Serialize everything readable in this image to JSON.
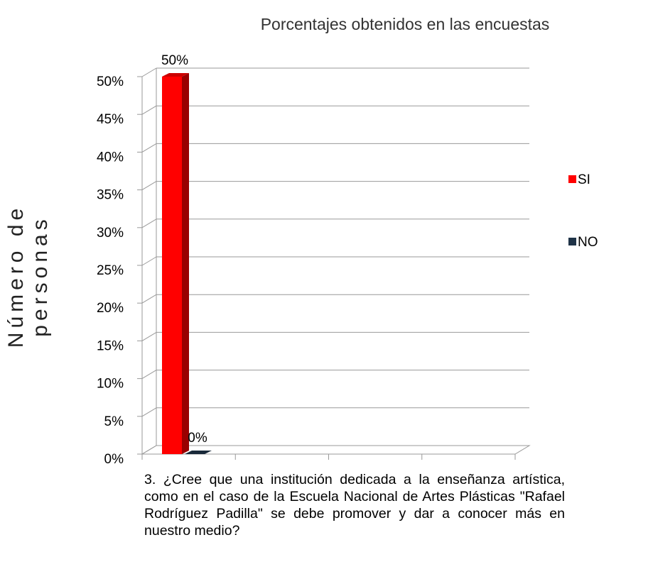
{
  "chart_data": {
    "type": "bar",
    "title": "Porcentajes obtenidos en las encuestas",
    "ylabel": "Número de personas",
    "categories": [
      "3. ¿Cree que una institución dedicada a la enseñanza artística, como en el caso de la Escuela Nacional de Artes Plásticas \"Rafael Rodríguez Padilla\" se debe promover y dar a conocer más en nuestro medio?"
    ],
    "series": [
      {
        "name": "SI",
        "color": "#ff0000",
        "values": [
          50
        ],
        "value_labels": [
          "50%"
        ]
      },
      {
        "name": "NO",
        "color": "#1f3347",
        "values": [
          0
        ],
        "value_labels": [
          "0%"
        ]
      }
    ],
    "ylim": [
      0,
      50
    ],
    "yticks": [
      {
        "value": 0,
        "label": "0%"
      },
      {
        "value": 5,
        "label": "5%"
      },
      {
        "value": 10,
        "label": "10%"
      },
      {
        "value": 15,
        "label": "15%"
      },
      {
        "value": 20,
        "label": "20%"
      },
      {
        "value": 25,
        "label": "25%"
      },
      {
        "value": 30,
        "label": "30%"
      },
      {
        "value": 35,
        "label": "35%"
      },
      {
        "value": 40,
        "label": "40%"
      },
      {
        "value": 45,
        "label": "45%"
      },
      {
        "value": 50,
        "label": "50%"
      }
    ],
    "grid": true,
    "legend": "right"
  }
}
